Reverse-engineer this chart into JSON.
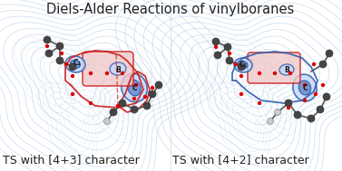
{
  "title": "Diels-Alder Reactions of vinylboranes",
  "title_fontsize": 10.5,
  "title_color": "#222222",
  "background_color": "#ffffff",
  "left_label": "TS with [4+3] character",
  "right_label": "TS with [4+2] character",
  "label_fontsize": 9,
  "label_color": "#222222",
  "contour_color_light": "#a8c4e0",
  "contour_color_blue": "#3060b0",
  "contour_color_red": "#cc2020",
  "atom_dark": "#444444",
  "atom_light": "#cccccc",
  "atom_red": "#dd0000",
  "bond_color": "#555555"
}
